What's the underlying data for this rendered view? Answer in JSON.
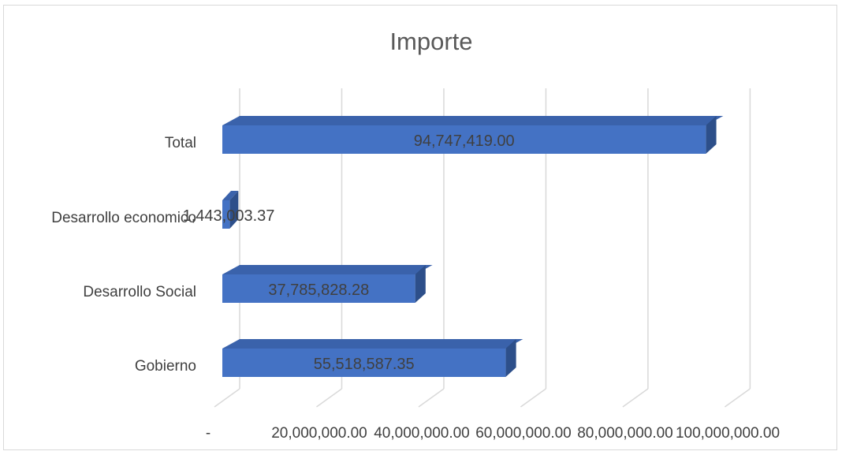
{
  "chart_data": {
    "type": "bar",
    "orientation": "horizontal",
    "style": "3d-clustered-bar",
    "title": "Importe",
    "xlabel": "",
    "ylabel": "",
    "categories": [
      "Gobierno",
      "Desarrollo Social",
      "Desarrollo economico",
      "Total"
    ],
    "values": [
      55518587.35,
      37785828.28,
      1443003.37,
      94747419.0
    ],
    "data_labels": [
      "55,518,587.35",
      "37,785,828.28",
      "1,443,003.37",
      "94,747,419.00"
    ],
    "xlim": [
      0,
      100000000
    ],
    "ticks": [
      0,
      20000000,
      40000000,
      60000000,
      80000000,
      100000000
    ],
    "tick_labels": [
      "-",
      "20,000,000.00",
      "40,000,000.00",
      "60,000,000.00",
      "80,000,000.00",
      "100,000,000.00"
    ],
    "grid": true,
    "legend": "none",
    "colors": {
      "bar_front": "#4472c4",
      "bar_top": "#3a62ab",
      "bar_side": "#2d4f8a",
      "grid": "#d9d9d9"
    }
  }
}
